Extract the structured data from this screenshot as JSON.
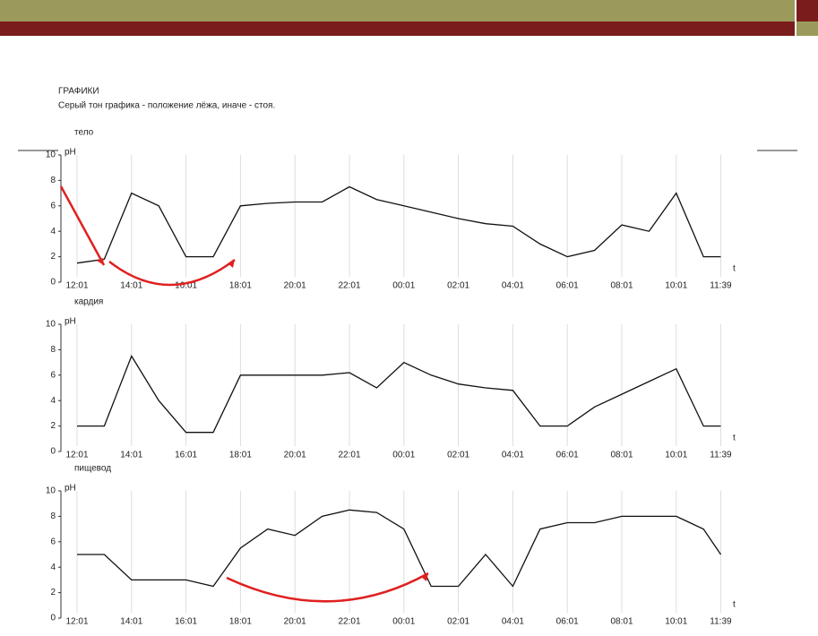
{
  "header": {
    "title": "ГРАФИКИ",
    "subtitle": "Серый тон графика - положение лёжа, иначе - стоя."
  },
  "chart_data": [
    {
      "type": "line",
      "title": "тело",
      "ylabel": "pH",
      "xlabel": "t",
      "color": "#111",
      "grid": true,
      "x": [
        "12:01",
        "13:01",
        "14:01",
        "15:01",
        "16:01",
        "17:01",
        "18:01",
        "19:01",
        "20:01",
        "21:01",
        "22:01",
        "23:01",
        "00:01",
        "01:01",
        "02:01",
        "03:01",
        "04:01",
        "05:01",
        "06:01",
        "07:01",
        "08:01",
        "09:01",
        "10:01",
        "11:01",
        "11:39"
      ],
      "values": [
        1.5,
        1.8,
        7,
        6,
        2,
        2,
        6,
        6.2,
        6.3,
        6.3,
        7.5,
        6.5,
        6,
        5.5,
        5,
        4.6,
        4.4,
        3,
        2,
        2.5,
        4.5,
        4,
        7,
        2,
        2
      ],
      "ylim": [
        0,
        10
      ],
      "yticks": [
        0,
        2,
        4,
        6,
        8,
        10
      ],
      "xticks": [
        "12:01",
        "14:01",
        "16:01",
        "18:01",
        "20:01",
        "22:01",
        "00:01",
        "02:01",
        "04:01",
        "06:01",
        "08:01",
        "10:01",
        "11:39"
      ]
    },
    {
      "type": "line",
      "title": "кардия",
      "ylabel": "pH",
      "xlabel": "t",
      "color": "#111",
      "grid": true,
      "x": [
        "12:01",
        "13:01",
        "14:01",
        "15:01",
        "16:01",
        "17:01",
        "18:01",
        "19:01",
        "20:01",
        "21:01",
        "22:01",
        "23:01",
        "00:01",
        "01:01",
        "02:01",
        "03:01",
        "04:01",
        "05:01",
        "06:01",
        "07:01",
        "08:01",
        "09:01",
        "10:01",
        "11:01",
        "11:39"
      ],
      "values": [
        2,
        2,
        7.5,
        4,
        1.5,
        1.5,
        6,
        6,
        6,
        6,
        6.2,
        5,
        7,
        6,
        5.3,
        5,
        4.8,
        2,
        2,
        3.5,
        4.5,
        5.5,
        6.5,
        2,
        2
      ],
      "ylim": [
        0,
        10
      ],
      "yticks": [
        0,
        2,
        4,
        6,
        8,
        10
      ],
      "xticks": [
        "12:01",
        "14:01",
        "16:01",
        "18:01",
        "20:01",
        "22:01",
        "00:01",
        "02:01",
        "04:01",
        "06:01",
        "08:01",
        "10:01",
        "11:39"
      ]
    },
    {
      "type": "line",
      "title": "пищевод",
      "ylabel": "pH",
      "xlabel": "t",
      "color": "#111",
      "grid": true,
      "x": [
        "12:01",
        "13:01",
        "14:01",
        "15:01",
        "16:01",
        "17:01",
        "18:01",
        "19:01",
        "20:01",
        "21:01",
        "22:01",
        "23:01",
        "00:01",
        "01:01",
        "02:01",
        "03:01",
        "04:01",
        "05:01",
        "06:01",
        "07:01",
        "08:01",
        "09:01",
        "10:01",
        "11:01",
        "11:39"
      ],
      "values": [
        5,
        5,
        3,
        3,
        3,
        2.5,
        5.5,
        7,
        6.5,
        8,
        8.5,
        8.3,
        7,
        2.5,
        2.5,
        5,
        2.5,
        7,
        7.5,
        7.5,
        8,
        8,
        8,
        7,
        5
      ],
      "ylim": [
        0,
        10
      ],
      "yticks": [
        0,
        2,
        4,
        6,
        8,
        10
      ],
      "xticks": [
        "12:01",
        "14:01",
        "16:01",
        "18:01",
        "20:01",
        "22:01",
        "00:01",
        "02:01",
        "04:01",
        "06:01",
        "08:01",
        "10:01",
        "11:39"
      ]
    }
  ]
}
